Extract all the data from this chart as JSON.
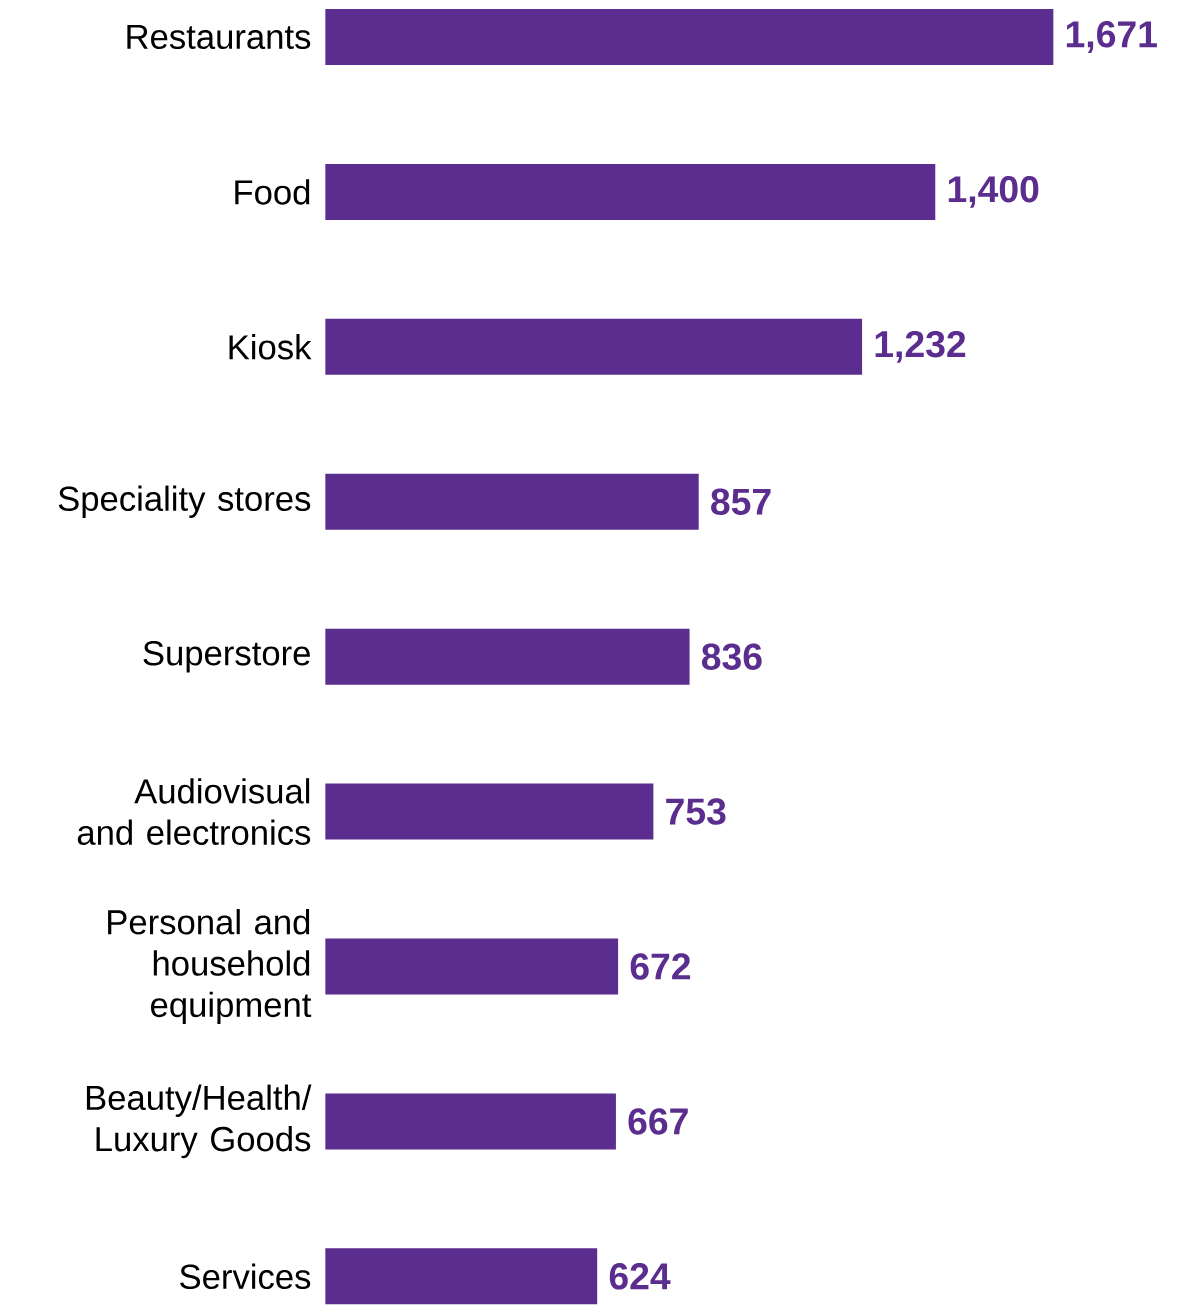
{
  "chart_data": {
    "type": "bar",
    "orientation": "horizontal",
    "categories": [
      "Restaurants",
      "Food",
      "Kiosk",
      "Speciality stores",
      "Superstore",
      "Audiovisual and electronics",
      "Personal and household equipment",
      "Beauty/Health/ Luxury Goods",
      "Services"
    ],
    "values": [
      1671,
      1400,
      1232,
      857,
      836,
      753,
      672,
      667,
      624
    ],
    "value_labels": [
      "1,671",
      "1,400",
      "1,232",
      "857",
      "836",
      "753",
      "672",
      "667",
      "624"
    ],
    "color": "#5b2d8e"
  }
}
